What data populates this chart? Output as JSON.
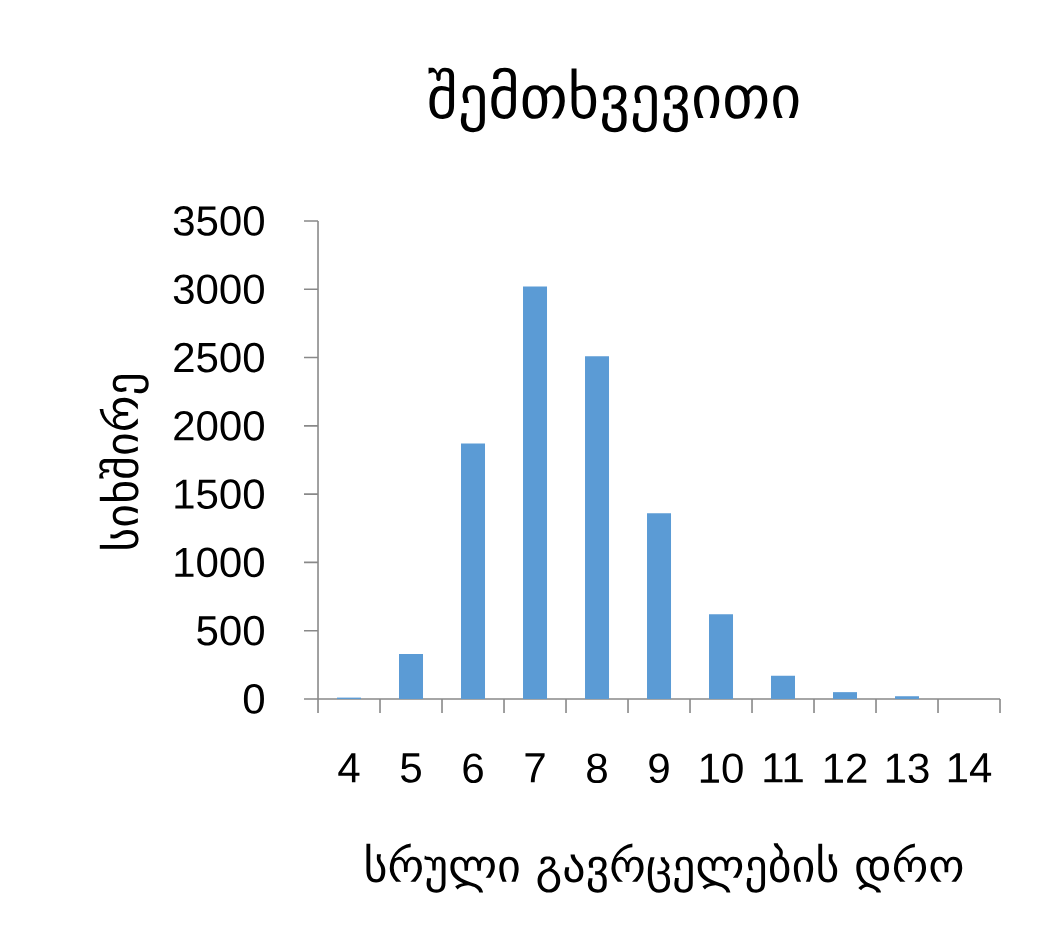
{
  "chart_data": {
    "type": "bar",
    "title": "შემთხვევითი",
    "xlabel": "სრული გავრცელების დრო",
    "ylabel": "სიხშირე",
    "categories": [
      "4",
      "5",
      "6",
      "7",
      "8",
      "9",
      "10",
      "11",
      "12",
      "13",
      "14"
    ],
    "values": [
      10,
      330,
      1870,
      3020,
      2510,
      1360,
      620,
      170,
      50,
      20,
      0
    ],
    "color": "#5b9bd5",
    "ylim": [
      0,
      3500
    ],
    "yticks": [
      0,
      500,
      1000,
      1500,
      2000,
      2500,
      3000,
      3500
    ]
  }
}
